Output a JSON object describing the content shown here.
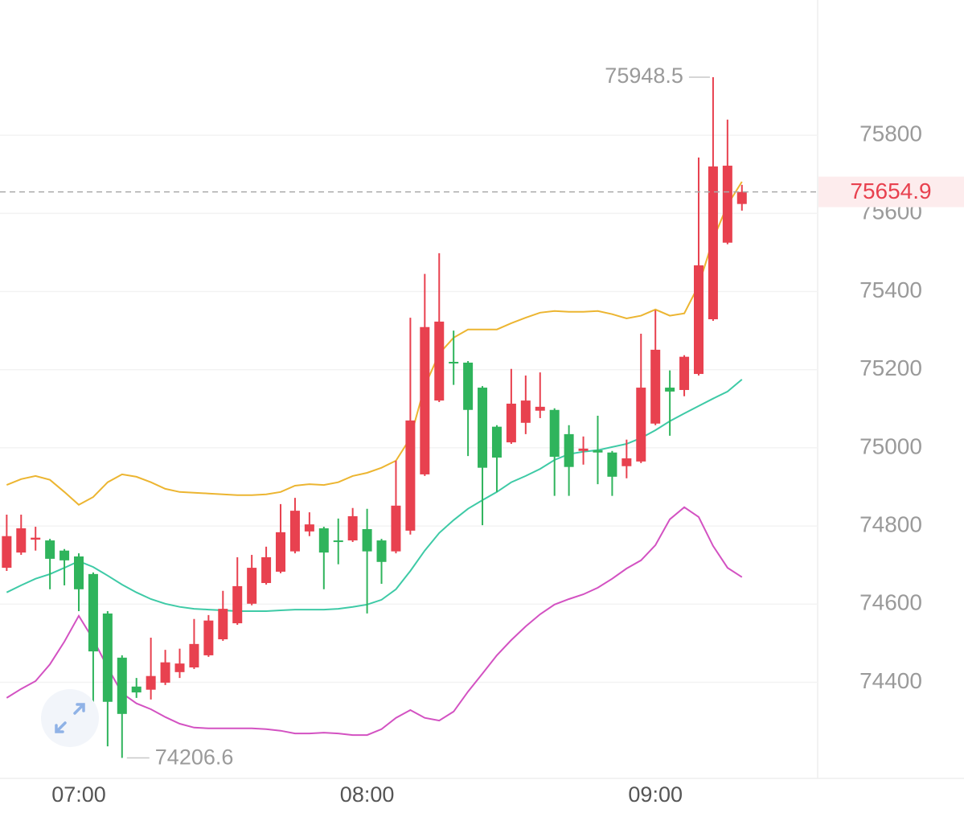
{
  "chart_data": {
    "type": "candlestick",
    "categories": [
      null,
      null,
      null,
      null,
      null,
      "07:00",
      null,
      null,
      null,
      null,
      null,
      null,
      null,
      null,
      null,
      null,
      null,
      null,
      null,
      null,
      null,
      null,
      null,
      null,
      null,
      "08:00",
      null,
      null,
      null,
      null,
      null,
      null,
      null,
      null,
      null,
      null,
      null,
      null,
      null,
      null,
      null,
      null,
      null,
      null,
      null,
      "09:00",
      null,
      null,
      null,
      null,
      null,
      null
    ],
    "open": [
      74693,
      74732,
      74765,
      74763,
      74737,
      74722,
      74677,
      74576,
      74463,
      74389,
      74381,
      74399,
      74426,
      74438,
      74469,
      74510,
      74551,
      74601,
      74654,
      74683,
      74735,
      74786,
      74794,
      74763,
      74763,
      74792,
      74763,
      74735,
      74788,
      74932,
      75121,
      75220,
      75218,
      75154,
      75054,
      75014,
      75064,
      75095,
      75097,
      75035,
      74992,
      74994,
      74988,
      74953,
      74965,
      75062,
      75154,
      75148,
      75189,
      75329,
      75525,
      75624
    ],
    "high": [
      74829,
      74829,
      74798,
      74767,
      74741,
      74730,
      74681,
      74582,
      74469,
      74411,
      74514,
      74483,
      74486,
      74562,
      74572,
      74634,
      74720,
      74726,
      74747,
      74856,
      74872,
      74835,
      74798,
      74819,
      74846,
      74844,
      74767,
      74967,
      75333,
      75445,
      75498,
      75300,
      75222,
      75158,
      75058,
      75202,
      75185,
      75193,
      75101,
      75058,
      75029,
      75082,
      74992,
      75021,
      75292,
      75352,
      75198,
      75237,
      75743,
      75948.5,
      75840,
      75673
    ],
    "low": [
      74685,
      74726,
      74737,
      74638,
      74648,
      74582,
      74335,
      74236,
      74206.6,
      74360,
      74356,
      74393,
      74411,
      74434,
      74465,
      74506,
      74547,
      74597,
      74650,
      74679,
      74730,
      74774,
      74638,
      74702,
      74759,
      74576,
      74652,
      74730,
      74778,
      74928,
      75117,
      75161,
      74979,
      74802,
      74887,
      75010,
      75035,
      75076,
      74877,
      74877,
      74957,
      74907,
      74877,
      74922,
      74961,
      75058,
      75031,
      75132,
      75185,
      75325,
      75521,
      75607
    ],
    "close": [
      74774,
      74794,
      74770,
      74716,
      74712,
      74638,
      74479,
      74350,
      74319,
      74374,
      74416,
      74451,
      74448,
      74498,
      74558,
      74588,
      74646,
      74693,
      74720,
      74784,
      74839,
      74804,
      74732,
      74759,
      74825,
      74735,
      74708,
      74852,
      75070,
      75309,
      75323,
      75216,
      75097,
      74949,
      74975,
      75113,
      75121,
      75105,
      74977,
      74951,
      74998,
      74988,
      74926,
      74973,
      75154,
      75251,
      75144,
      75233,
      75467,
      75720,
      75722,
      75654.9
    ],
    "up_color": "#e8414f",
    "down_color": "#2fb45c",
    "lines": [
      {
        "color": "#ecb531",
        "values": [
          74905,
          74920,
          74928,
          74918,
          74887,
          74854,
          74874,
          74912,
          74932,
          74926,
          74912,
          74895,
          74887,
          74885,
          74883,
          74881,
          74879,
          74879,
          74881,
          74887,
          74903,
          74907,
          74905,
          74912,
          74928,
          74936,
          74949,
          74967,
          75025,
          75158,
          75241,
          75282,
          75303,
          75303,
          75303,
          75319,
          75333,
          75346,
          75350,
          75348,
          75348,
          75350,
          75342,
          75331,
          75338,
          75354,
          75338,
          75344,
          75416,
          75533,
          75622,
          75681
        ]
      },
      {
        "color": "#3ecaa6",
        "values": [
          74630,
          74648,
          74665,
          74677,
          74693,
          74710,
          74695,
          74673,
          74650,
          74630,
          74613,
          74601,
          74593,
          74588,
          74586,
          74584,
          74582,
          74582,
          74582,
          74584,
          74586,
          74586,
          74586,
          74588,
          74593,
          74599,
          74611,
          74638,
          74685,
          74737,
          74782,
          74815,
          74844,
          74866,
          74887,
          74912,
          74928,
          74946,
          74969,
          74984,
          74990,
          74994,
          75002,
          75010,
          75025,
          75045,
          75068,
          75088,
          75107,
          75126,
          75144,
          75175
        ]
      },
      {
        "color": "#d352c2",
        "values": [
          74360,
          74383,
          74403,
          74446,
          74504,
          74570,
          74510,
          74438,
          74372,
          74346,
          74331,
          74311,
          74294,
          74284,
          74282,
          74282,
          74282,
          74282,
          74280,
          74276,
          74269,
          74269,
          74271,
          74269,
          74265,
          74265,
          74280,
          74309,
          74329,
          74309,
          74302,
          74325,
          74376,
          74422,
          74469,
          74508,
          74543,
          74574,
          74599,
          74613,
          74625,
          74642,
          74665,
          74691,
          74712,
          74751,
          74817,
          74848,
          74823,
          74749,
          74693,
          74669
        ]
      }
    ],
    "ylim": [
      74154,
      76146
    ],
    "yticks": [
      74400,
      74600,
      74800,
      75000,
      75200,
      75400,
      75600,
      75800
    ],
    "grid": true,
    "high_label": 75948.5,
    "low_label": 74206.6,
    "current_price": 75654.9
  }
}
